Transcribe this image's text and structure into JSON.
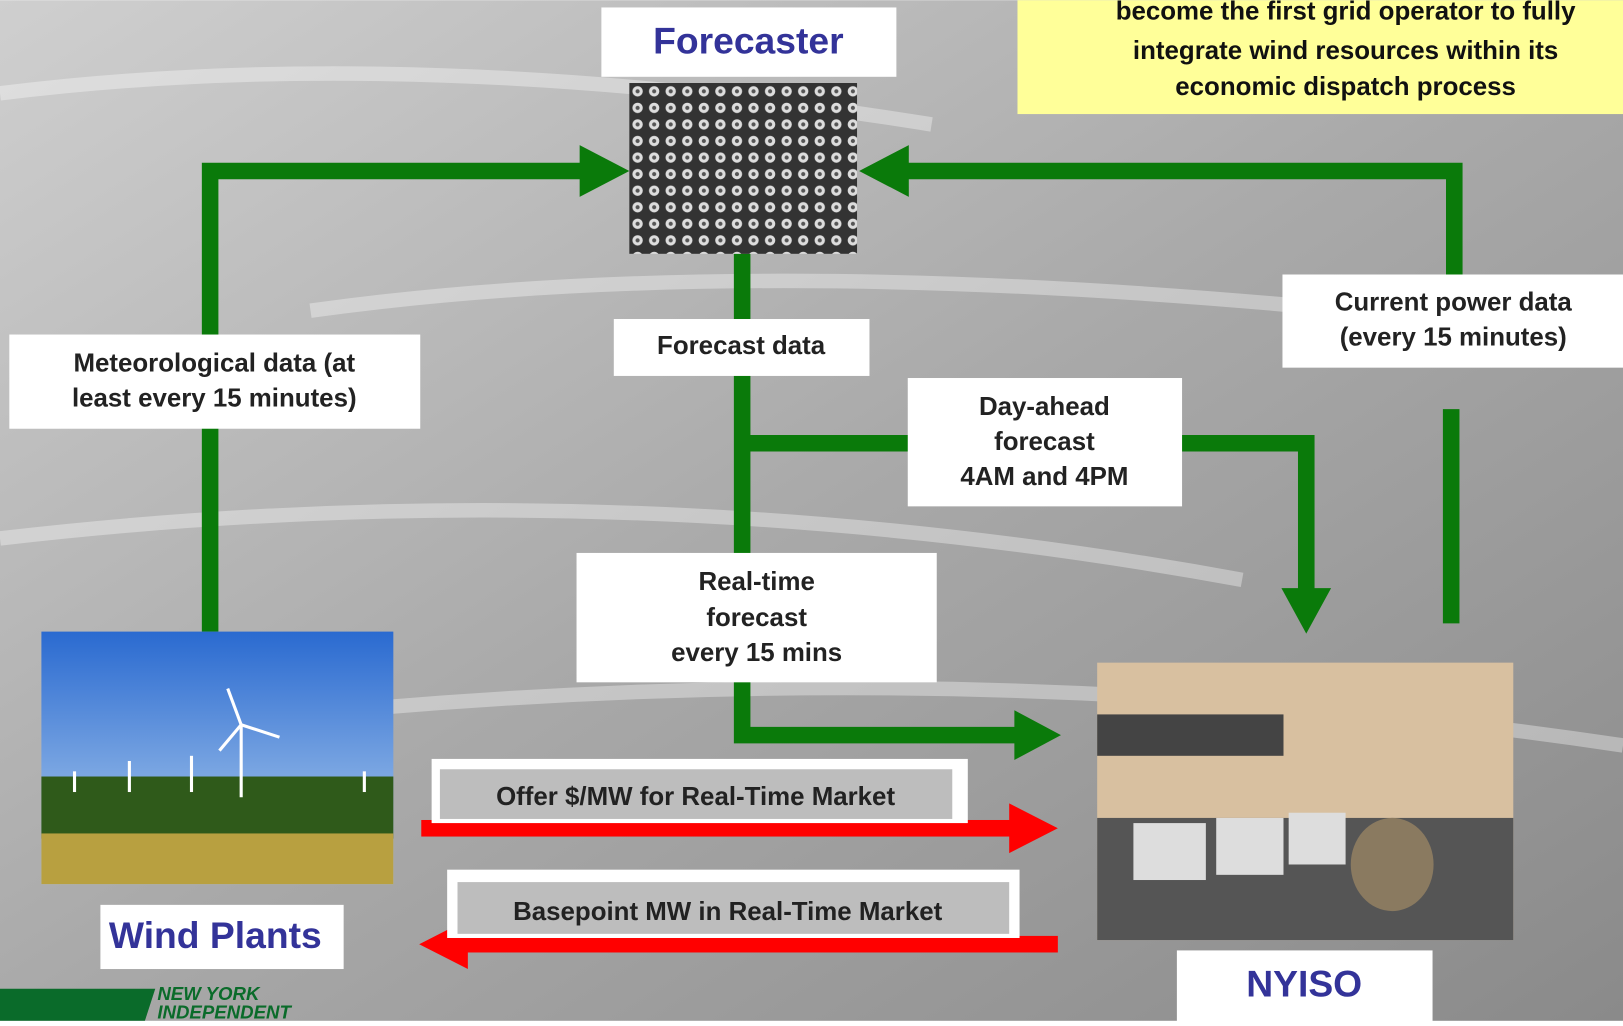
{
  "note": {
    "lines": [
      "become the first grid operator to fully",
      "integrate wind resources within its",
      "economic dispatch process"
    ]
  },
  "nodes": [
    {
      "label": "Forecaster"
    },
    {
      "label": "Wind Plants"
    },
    {
      "label": "NYISO"
    }
  ],
  "edges": [
    {
      "label": [
        "Meteorological data (at",
        "least every 15 minutes)"
      ]
    },
    {
      "label": [
        "Forecast data"
      ]
    },
    {
      "label": [
        "Current power data",
        "(every 15 minutes)"
      ]
    },
    {
      "label": [
        "Day-ahead",
        "forecast",
        "4AM and 4PM"
      ]
    },
    {
      "label": [
        "Real-time",
        "forecast",
        "every 15 mins"
      ]
    },
    {
      "label": [
        "Offer $/MW for Real-Time Market"
      ]
    },
    {
      "label": [
        "Basepoint MW in Real-Time Market"
      ]
    }
  ],
  "logo": {
    "lines": [
      "NEW YORK",
      "INDEPENDENT"
    ]
  }
}
